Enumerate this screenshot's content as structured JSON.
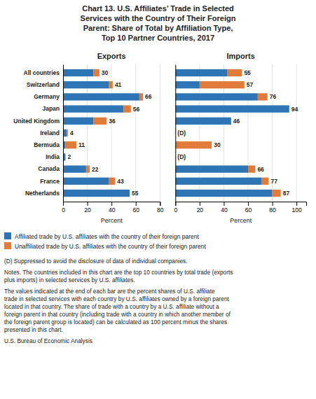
{
  "title": "Chart 13. U.S. Affiliates’ Trade in Selected\nServices with the Country of Their Foreign\nParent: Share of Total by Affiliation Type,\nTop 10 Partner Countries, 2017",
  "notes": [
    "(D) Suppressed to avoid the disclosure of data of individual companies.",
    "Notes. The countries included in this chart are the top 10 countries by total trade (exports\nplus imports) in selected services by U.S. affiliates.",
    "The values indicated at the end of each bar are the percent shares of U.S. affiliate\ntrade in selected services with each country by U.S. affiliates owned by a foreign parent\nlocated in that country. The share of trade with a country by a U.S. affiliate without a\nforeign parent in that country (including trade with a country in which another member of\nthe foreign parent group is located) can be calculated as 100 percent minus the shares\npresented in this chart.",
    "U.S. Bureau of Economic Analysis"
  ],
  "chart_data": [
    {
      "type": "bar",
      "orientation": "horizontal",
      "stacked": true,
      "title": "Exports",
      "xlabel": "Percent",
      "categories": [
        "All countries",
        "Switzerland",
        "Germany",
        "Japan",
        "United Kingdom",
        "Ireland",
        "Bermuda",
        "India",
        "Canada",
        "France",
        "Netherlands"
      ],
      "series": [
        {
          "name": "Affiliated trade by U.S. affiliates with the country of their foreign parent",
          "color": "#2e75b6",
          "values": [
            25,
            38,
            63,
            50,
            25,
            3,
            2,
            2,
            19,
            38,
            55
          ]
        },
        {
          "name": "Unaffiliated trade by U.S. affiliates with the country of their foreign parent",
          "color": "#e07b39",
          "values": [
            5,
            3,
            3,
            6,
            11,
            1,
            9,
            0,
            3,
            5,
            0
          ]
        }
      ],
      "totals": [
        30,
        41,
        66,
        56,
        36,
        4,
        11,
        2,
        22,
        43,
        55
      ],
      "total_labels": [
        "30",
        "41",
        "66",
        "56",
        "36",
        "4",
        "11",
        "2",
        "22",
        "43",
        "55"
      ],
      "xlim": [
        0,
        80
      ],
      "xticks": [
        0,
        20,
        40,
        60,
        80
      ],
      "grid": true,
      "legend": "bottom"
    },
    {
      "type": "bar",
      "orientation": "horizontal",
      "stacked": true,
      "title": "Imports",
      "xlabel": "Percent",
      "categories": [
        "All countries",
        "Switzerland",
        "Germany",
        "Japan",
        "United Kingdom",
        "Ireland",
        "Bermuda",
        "India",
        "Canada",
        "France",
        "Netherlands"
      ],
      "series": [
        {
          "color": "#2e75b6",
          "values": [
            43,
            20,
            68,
            94,
            46,
            null,
            0,
            null,
            60,
            71,
            80
          ]
        },
        {
          "color": "#e07b39",
          "values": [
            12,
            37,
            8,
            0,
            0,
            null,
            30,
            null,
            6,
            6,
            7
          ]
        }
      ],
      "totals": [
        55,
        57,
        76,
        94,
        46,
        null,
        30,
        null,
        66,
        77,
        87
      ],
      "total_labels": [
        "55",
        "57",
        "76",
        "94",
        "46",
        "(D)",
        "30",
        "(D)",
        "66",
        "77",
        "87"
      ],
      "xlim": [
        0,
        108
      ],
      "xticks": [
        0,
        20,
        40,
        60,
        80,
        100
      ],
      "grid": true,
      "tick_labels": "x"
    }
  ]
}
